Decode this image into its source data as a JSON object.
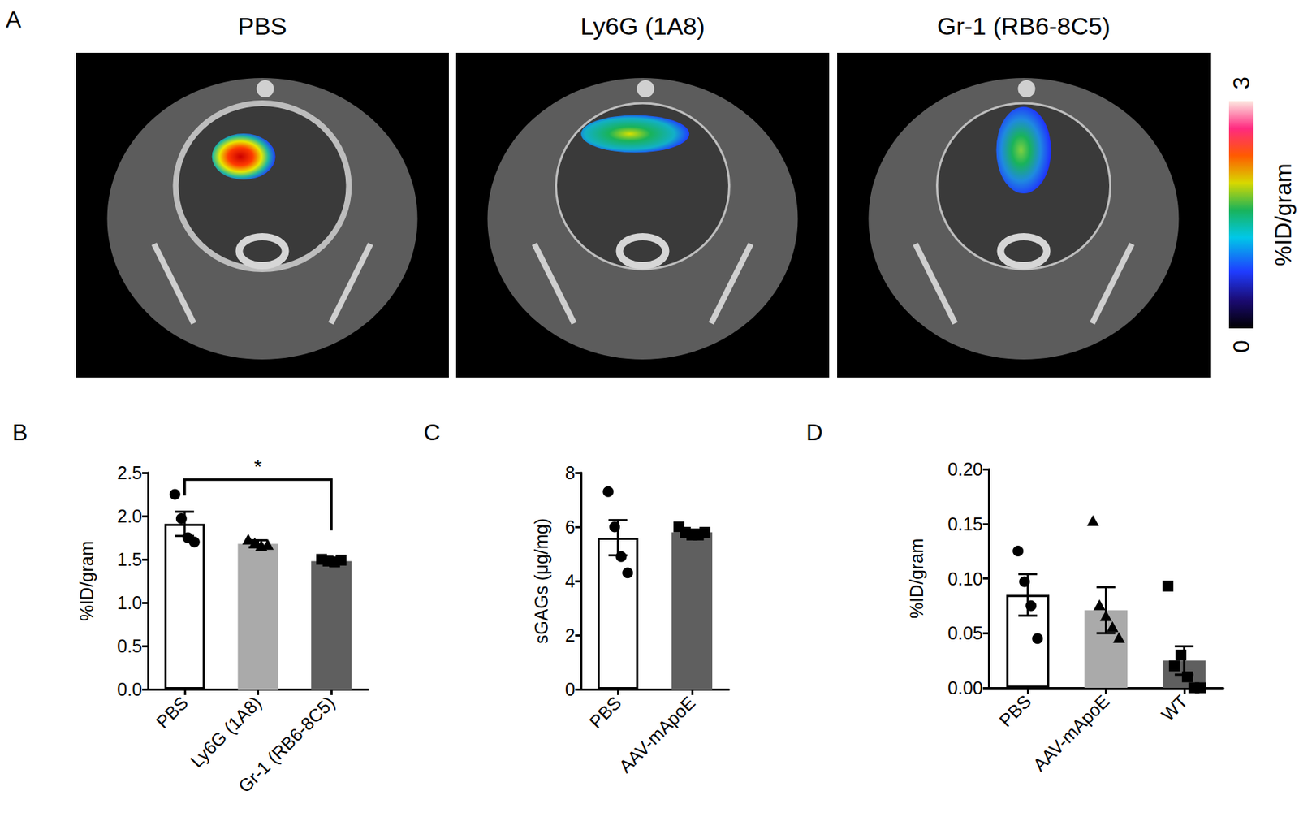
{
  "figure_a": {
    "title": "A",
    "images": [
      "PBS",
      "Ly6G (1A8)",
      "Gr-1 (RB6-8C5)"
    ],
    "colorbar": {
      "label": "%ID/gram",
      "range": [
        0,
        3
      ],
      "ticks": [
        0,
        3
      ]
    }
  },
  "chart_data": [
    {
      "type": "bar",
      "title": "B",
      "ylabel": "%ID/gram",
      "categories": [
        "PBS",
        "Ly6G (1A8)",
        "Gr-1 (RB6-8C5)"
      ],
      "values": [
        1.91,
        1.68,
        1.48
      ],
      "errors": [
        0.14,
        0.04,
        0.02
      ],
      "colors": [
        "#ffffff",
        "#aaaaaa",
        "#5f5f5f"
      ],
      "points": [
        {
          "category": "PBS",
          "marker": "circle",
          "values": [
            2.25,
            1.97,
            1.75,
            1.7
          ]
        },
        {
          "category": "Ly6G (1A8)",
          "marker": "triangle",
          "values": [
            1.72,
            1.68,
            1.65,
            1.66
          ]
        },
        {
          "category": "Gr-1 (RB6-8C5)",
          "marker": "square",
          "values": [
            1.5,
            1.48,
            1.47,
            1.49
          ]
        }
      ],
      "annotations": [
        {
          "text": "*",
          "from": "PBS",
          "to": "Gr-1 (RB6-8C5)",
          "y": 2.42
        }
      ],
      "ylim": [
        0,
        2.5
      ],
      "yticks": [
        {
          "value": 0,
          "label": "0.0"
        },
        {
          "value": 0.5,
          "label": "0.5"
        },
        {
          "value": 1,
          "label": "1.0"
        },
        {
          "value": 1.5,
          "label": "1.5"
        },
        {
          "value": 2,
          "label": "2.0"
        },
        {
          "value": 2.5,
          "label": "2.5"
        }
      ],
      "grid": false
    },
    {
      "type": "bar",
      "title": "C",
      "ylabel": "sGAGs (μg/mg)",
      "categories": [
        "PBS",
        "AAV-mApoE"
      ],
      "values": [
        5.6,
        5.8
      ],
      "errors": [
        0.65,
        0.1
      ],
      "colors": [
        "#ffffff",
        "#5f5f5f"
      ],
      "points": [
        {
          "category": "PBS",
          "marker": "circle",
          "values": [
            7.3,
            6.0,
            4.9,
            4.3
          ]
        },
        {
          "category": "AAV-mApoE",
          "marker": "square",
          "values": [
            6.0,
            5.8,
            5.7,
            5.7,
            5.8
          ]
        }
      ],
      "ylim": [
        0,
        8
      ],
      "yticks": [
        0,
        2,
        4,
        6,
        8
      ],
      "grid": false
    },
    {
      "type": "bar",
      "title": "D",
      "ylabel": "%ID/gram",
      "categories": [
        "PBS",
        "AAV-mApoE",
        "WT"
      ],
      "values": [
        0.085,
        0.071,
        0.025
      ],
      "errors": [
        0.019,
        0.021,
        0.013
      ],
      "colors": [
        "#ffffff",
        "#aaaaaa",
        "#5f5f5f"
      ],
      "points": [
        {
          "category": "PBS",
          "marker": "circle",
          "values": [
            0.125,
            0.097,
            0.075,
            0.045
          ]
        },
        {
          "category": "AAV-mApoE",
          "marker": "triangle",
          "values": [
            0.152,
            0.075,
            0.065,
            0.055,
            0.045
          ]
        },
        {
          "category": "WT",
          "marker": "square",
          "values": [
            0.093,
            0.02,
            0.03,
            0.01,
            0.0,
            0.0
          ]
        }
      ],
      "ylim": [
        0,
        0.2
      ],
      "yticks": [
        {
          "value": 0,
          "label": "0.00"
        },
        {
          "value": 0.05,
          "label": "0.05"
        },
        {
          "value": 0.1,
          "label": "0.10"
        },
        {
          "value": 0.15,
          "label": "0.15"
        },
        {
          "value": 0.2,
          "label": "0.20"
        }
      ],
      "grid": false
    }
  ]
}
